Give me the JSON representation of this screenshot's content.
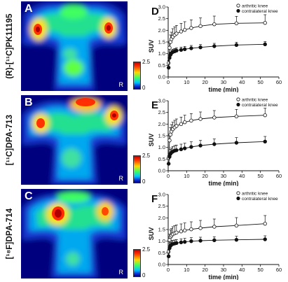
{
  "figure": {
    "colorbar": {
      "max_label": "2.5",
      "min_label": "0"
    },
    "side_marker": "R",
    "rows": [
      {
        "pet_letter": "A",
        "tracer_label": "(R)-[¹¹C]PK11195",
        "chart_letter": "D"
      },
      {
        "pet_letter": "B",
        "tracer_label": "[¹¹C]DPA-713",
        "chart_letter": "E"
      },
      {
        "pet_letter": "C",
        "tracer_label": "[¹⁸F]DPA-714",
        "chart_letter": "F"
      }
    ]
  },
  "chart_data": [
    {
      "type": "line",
      "xlabel": "time (min)",
      "ylabel": "SUV",
      "xlim": [
        0,
        60
      ],
      "ylim": [
        0,
        3.0
      ],
      "xticks": [
        "0",
        "10",
        "20",
        "30",
        "40",
        "50",
        "60"
      ],
      "yticks": [
        "0.0",
        "0.5",
        "1.0",
        "1.5",
        "2.0",
        "2.5",
        "3.0"
      ],
      "legend_position": "top-right",
      "series": [
        {
          "name": "arthritic knee",
          "marker": "open-circle",
          "x": [
            0.25,
            0.75,
            1.25,
            1.75,
            2.5,
            3.5,
            4.5,
            7,
            9,
            12.5,
            17.5,
            25,
            37,
            52.5
          ],
          "y": [
            0.6,
            1.25,
            1.5,
            1.62,
            1.72,
            1.8,
            1.86,
            1.95,
            2.02,
            2.1,
            2.18,
            2.26,
            2.3,
            2.32
          ],
          "err": [
            0.1,
            0.2,
            0.3,
            0.3,
            0.35,
            0.35,
            0.35,
            0.35,
            0.35,
            0.35,
            0.35,
            0.35,
            0.3,
            0.35
          ]
        },
        {
          "name": "contralateral knee",
          "marker": "filled-circle",
          "x": [
            0.25,
            0.75,
            1.25,
            1.75,
            2.5,
            3.5,
            4.5,
            7,
            9,
            12.5,
            17.5,
            25,
            37,
            52.5
          ],
          "y": [
            0.4,
            0.82,
            0.95,
            1.02,
            1.07,
            1.1,
            1.13,
            1.16,
            1.19,
            1.23,
            1.27,
            1.32,
            1.37,
            1.4
          ],
          "err": [
            0.05,
            0.1,
            0.12,
            0.12,
            0.12,
            0.12,
            0.12,
            0.12,
            0.12,
            0.12,
            0.12,
            0.12,
            0.12,
            0.12
          ]
        }
      ]
    },
    {
      "type": "line",
      "xlabel": "time (min)",
      "ylabel": "SUV",
      "xlim": [
        0,
        60
      ],
      "ylim": [
        0,
        3.0
      ],
      "xticks": [
        "0",
        "10",
        "20",
        "30",
        "40",
        "50",
        "60"
      ],
      "yticks": [
        "0.0",
        "0.5",
        "1.0",
        "1.5",
        "2.0",
        "2.5",
        "3.0"
      ],
      "legend_position": "top-right",
      "series": [
        {
          "name": "arthritic knee",
          "marker": "open-circle",
          "x": [
            0.25,
            0.75,
            1.25,
            1.75,
            2.5,
            3.5,
            4.5,
            7,
            9,
            12.5,
            17.5,
            25,
            37,
            52.5
          ],
          "y": [
            0.55,
            1.3,
            1.55,
            1.68,
            1.78,
            1.86,
            1.92,
            2.0,
            2.08,
            2.15,
            2.22,
            2.28,
            2.33,
            2.38
          ],
          "err": [
            0.1,
            0.2,
            0.3,
            0.3,
            0.3,
            0.3,
            0.3,
            0.3,
            0.3,
            0.3,
            0.3,
            0.3,
            0.3,
            0.3
          ]
        },
        {
          "name": "contralateral knee",
          "marker": "filled-circle",
          "x": [
            0.25,
            0.75,
            1.25,
            1.75,
            2.5,
            3.5,
            4.5,
            7,
            9,
            12.5,
            17.5,
            25,
            37,
            52.5
          ],
          "y": [
            0.3,
            0.6,
            0.72,
            0.78,
            0.82,
            0.86,
            0.88,
            0.92,
            0.96,
            1.02,
            1.08,
            1.14,
            1.2,
            1.25
          ],
          "err": [
            0.05,
            0.1,
            0.2,
            0.2,
            0.22,
            0.22,
            0.22,
            0.22,
            0.22,
            0.22,
            0.22,
            0.22,
            0.22,
            0.22
          ]
        }
      ]
    },
    {
      "type": "line",
      "xlabel": "time (min)",
      "ylabel": "SUV",
      "xlim": [
        0,
        60
      ],
      "ylim": [
        0,
        3.0
      ],
      "xticks": [
        "0",
        "10",
        "20",
        "30",
        "40",
        "50",
        "60"
      ],
      "yticks": [
        "0.0",
        "0.5",
        "1.0",
        "1.5",
        "2.0",
        "2.5",
        "3.0"
      ],
      "legend_position": "top-right",
      "series": [
        {
          "name": "arthritic knee",
          "marker": "open-circle",
          "x": [
            0.25,
            0.75,
            1.25,
            1.75,
            2.5,
            3.5,
            4.5,
            7,
            9,
            12.5,
            17.5,
            25,
            37,
            52.5
          ],
          "y": [
            0.55,
            1.05,
            1.18,
            1.24,
            1.3,
            1.34,
            1.37,
            1.42,
            1.46,
            1.51,
            1.56,
            1.62,
            1.67,
            1.75
          ],
          "err": [
            0.1,
            0.25,
            0.3,
            0.3,
            0.32,
            0.32,
            0.32,
            0.32,
            0.32,
            0.32,
            0.33,
            0.33,
            0.34,
            0.35
          ]
        },
        {
          "name": "contralateral knee",
          "marker": "filled-circle",
          "x": [
            0.25,
            0.75,
            1.25,
            1.75,
            2.5,
            3.5,
            4.5,
            7,
            9,
            12.5,
            17.5,
            25,
            37,
            52.5
          ],
          "y": [
            0.35,
            0.7,
            0.8,
            0.85,
            0.88,
            0.9,
            0.92,
            0.95,
            0.97,
            1.0,
            1.02,
            1.04,
            1.06,
            1.08
          ],
          "err": [
            0.05,
            0.1,
            0.15,
            0.15,
            0.15,
            0.15,
            0.15,
            0.15,
            0.15,
            0.15,
            0.15,
            0.15,
            0.15,
            0.15
          ]
        }
      ]
    }
  ]
}
